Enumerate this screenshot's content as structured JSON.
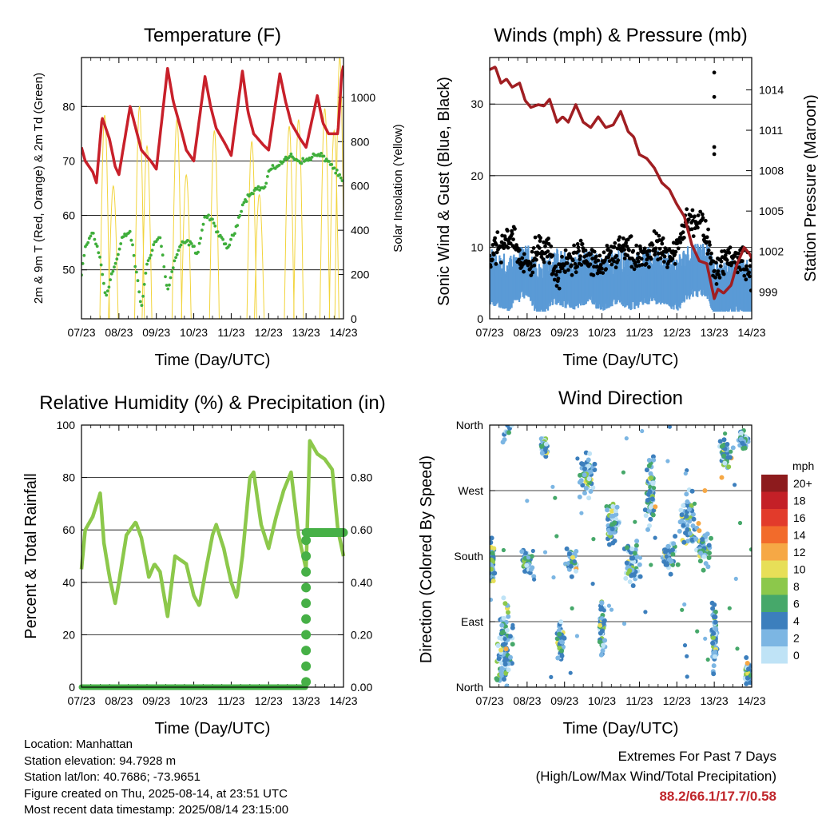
{
  "chart_data": [
    {
      "type": "line",
      "title": "Temperature (F)",
      "xlabel": "Time (Day/UTC)",
      "ylabel": "2m & 9m T (Red, Orange) & 2m Td (Green)",
      "ylabel_right": "Solar Insolation (Yellow)",
      "x_ticks": [
        "07/23",
        "08/23",
        "09/23",
        "10/23",
        "11/23",
        "12/23",
        "13/23",
        "14/23"
      ],
      "y_ticks": [
        50,
        60,
        70,
        80
      ],
      "y_right_ticks": [
        0,
        200,
        400,
        600,
        800,
        1000
      ],
      "ylim": [
        41,
        89
      ],
      "y_right_lim": [
        0,
        1180
      ],
      "grid": "horizontal",
      "series": [
        {
          "name": "2m T",
          "color": "#c8202a",
          "x": [
            0,
            0.1,
            0.3,
            0.4,
            0.55,
            0.75,
            0.9,
            1.0,
            1.3,
            1.45,
            1.6,
            1.85,
            2.0,
            2.3,
            2.45,
            2.65,
            2.8,
            3.0,
            3.3,
            3.45,
            3.6,
            3.85,
            4.0,
            4.3,
            4.45,
            4.6,
            4.85,
            5.0,
            5.3,
            5.45,
            5.6,
            5.85,
            6.0,
            6.3,
            6.45,
            6.6,
            6.85,
            6.95,
            7.0
          ],
          "values": [
            72.5,
            70,
            68,
            66,
            78,
            74,
            69,
            67.5,
            80,
            76,
            72,
            70,
            68.5,
            87,
            81,
            76,
            72,
            70,
            85.5,
            80,
            76,
            73,
            71,
            86.5,
            79,
            75,
            73,
            72,
            86,
            81,
            77,
            74,
            72.5,
            82,
            77,
            75,
            75,
            86,
            87.5
          ]
        },
        {
          "name": "2m Td",
          "color": "#3fae3b",
          "x": [
            0,
            0.1,
            0.3,
            0.5,
            0.65,
            0.8,
            0.95,
            1.1,
            1.3,
            1.5,
            1.6,
            1.75,
            1.95,
            2.1,
            2.3,
            2.5,
            2.7,
            2.9,
            3.1,
            3.3,
            3.5,
            3.7,
            3.9,
            4.1,
            4.3,
            4.5,
            4.7,
            4.9,
            5.0,
            5.2,
            5.4,
            5.6,
            5.8,
            6.0,
            6.2,
            6.4,
            6.6,
            6.8,
            7.0
          ],
          "values": [
            49,
            54,
            57,
            52,
            45,
            49,
            52,
            56,
            57,
            48,
            43,
            51,
            55,
            56,
            46,
            52,
            55,
            55,
            53,
            60,
            59,
            56,
            54,
            57,
            62,
            64,
            65,
            65,
            68,
            69,
            70,
            71,
            70,
            70,
            71,
            71,
            70,
            68,
            66
          ]
        },
        {
          "name": "Solar Insolation",
          "color": "#f2d43c",
          "axis": "right",
          "peaks": [
            {
              "day": 0.62,
              "value": 920
            },
            {
              "day": 0.85,
              "value": 600
            },
            {
              "day": 1.55,
              "value": 960
            },
            {
              "day": 1.75,
              "value": 780
            },
            {
              "day": 2.55,
              "value": 900
            },
            {
              "day": 2.8,
              "value": 650
            },
            {
              "day": 3.55,
              "value": 850
            },
            {
              "day": 4.55,
              "value": 800
            },
            {
              "day": 4.75,
              "value": 560
            },
            {
              "day": 5.55,
              "value": 870
            },
            {
              "day": 5.8,
              "value": 900
            },
            {
              "day": 6.5,
              "value": 950
            },
            {
              "day": 6.75,
              "value": 850
            },
            {
              "day": 6.9,
              "value": 1180
            }
          ]
        }
      ]
    },
    {
      "type": "scatter",
      "title": "Winds (mph) & Pressure (mb)",
      "xlabel": "Time (Day/UTC)",
      "ylabel": "Sonic Wind & Gust (Blue, Black)",
      "ylabel_right": "Station Pressure (Maroon)",
      "x_ticks": [
        "07/23",
        "08/23",
        "09/23",
        "10/23",
        "11/23",
        "12/23",
        "13/23",
        "14/23"
      ],
      "y_ticks": [
        0,
        10,
        20,
        30
      ],
      "y_right_ticks": [
        999,
        1002,
        1005,
        1008,
        1011,
        1014
      ],
      "ylim": [
        0,
        36.5
      ],
      "y_right_lim": [
        997,
        1016.4
      ],
      "grid": "horizontal",
      "series": [
        {
          "name": "Gust",
          "color": "#000000",
          "marker": "dot"
        },
        {
          "name": "Wind",
          "color": "#5a9ad6",
          "marker": "band"
        },
        {
          "name": "Pressure",
          "color": "#a01e22",
          "axis": "right",
          "x": [
            0,
            0.15,
            0.3,
            0.45,
            0.6,
            0.8,
            0.95,
            1.1,
            1.3,
            1.45,
            1.6,
            1.8,
            1.95,
            2.1,
            2.3,
            2.5,
            2.7,
            2.9,
            3.1,
            3.3,
            3.5,
            3.7,
            3.85,
            4.0,
            4.2,
            4.4,
            4.6,
            4.8,
            5.0,
            5.2,
            5.4,
            5.6,
            5.8,
            6.0,
            6.1,
            6.25,
            6.45,
            6.6,
            6.8,
            6.95,
            7.0
          ],
          "values": [
            1015.5,
            1015.7,
            1014.5,
            1014.8,
            1014.2,
            1014.5,
            1013.2,
            1012.7,
            1012.9,
            1012.8,
            1013.3,
            1011.6,
            1012.0,
            1011.6,
            1012.9,
            1011.6,
            1011.2,
            1012.0,
            1011.2,
            1011.4,
            1012.4,
            1010.9,
            1010.5,
            1009.2,
            1008.9,
            1008.2,
            1007.1,
            1006.6,
            1005.5,
            1004.6,
            1002.5,
            1001.3,
            1001.1,
            998.5,
            999.2,
            998.9,
            999.5,
            1001.0,
            1002.3,
            1001.8,
            1001.5
          ]
        },
        {
          "name": "Outliers",
          "color": "#000000",
          "points": [
            [
              6.0,
              34.4
            ],
            [
              6.0,
              31.0
            ],
            [
              6.0,
              24.0
            ],
            [
              6.0,
              23.0
            ]
          ]
        }
      ]
    },
    {
      "type": "line",
      "title": "Relative Humidity (%) & Precipitation (in)",
      "xlabel": "Time (Day/UTC)",
      "ylabel": "Percent & Total Rainfall",
      "x_ticks": [
        "07/23",
        "08/23",
        "09/23",
        "10/23",
        "11/23",
        "12/23",
        "13/23",
        "14/23"
      ],
      "y_ticks": [
        0,
        20,
        40,
        60,
        80,
        100
      ],
      "y_right_ticks": [
        "0.00",
        "0.20",
        "0.40",
        "0.60",
        "0.80"
      ],
      "ylim": [
        0,
        100
      ],
      "y_right_lim": [
        0,
        1.0
      ],
      "grid": "horizontal",
      "series": [
        {
          "name": "Relative Humidity",
          "color": "#8cc84b",
          "x": [
            0,
            0.1,
            0.3,
            0.5,
            0.6,
            0.75,
            0.9,
            1.0,
            1.2,
            1.45,
            1.6,
            1.8,
            1.95,
            2.1,
            2.3,
            2.5,
            2.6,
            2.8,
            3.0,
            3.15,
            3.3,
            3.5,
            3.6,
            3.8,
            4.0,
            4.15,
            4.3,
            4.5,
            4.6,
            4.8,
            5.0,
            5.2,
            5.4,
            5.6,
            5.8,
            6.0,
            6.1,
            6.3,
            6.5,
            6.7,
            6.85,
            7.0
          ],
          "values": [
            45,
            60,
            65,
            74,
            55,
            42,
            32,
            40,
            58,
            63,
            57,
            42,
            47,
            44,
            27,
            50,
            49,
            47,
            35,
            31,
            43,
            58,
            62,
            53,
            40,
            34,
            50,
            80,
            82,
            62,
            53,
            65,
            75,
            82,
            58,
            45,
            94,
            89,
            87,
            83,
            60,
            50
          ]
        },
        {
          "name": "Total Precipitation",
          "color": "#46b046",
          "axis": "right",
          "x": [
            0,
            5.98,
            6.0,
            6.02,
            7.0
          ],
          "values": [
            0.0,
            0.0,
            0.3,
            0.59,
            0.59
          ]
        }
      ]
    },
    {
      "type": "scatter",
      "title": "Wind Direction",
      "xlabel": "Time (Day/UTC)",
      "ylabel": "Direction (Colored By Speed)",
      "x_ticks": [
        "07/23",
        "08/23",
        "09/23",
        "10/23",
        "11/23",
        "12/23",
        "13/23",
        "14/23"
      ],
      "y_ticks": [
        "North",
        "East",
        "South",
        "West",
        "North"
      ],
      "ylim": [
        0,
        360
      ],
      "grid": "horizontal",
      "colorbar": {
        "title": "mph",
        "labels": [
          "20+",
          "18",
          "16",
          "14",
          "12",
          "10",
          "8",
          "6",
          "4",
          "2",
          "0"
        ],
        "colors": [
          "#8d1b1d",
          "#c42027",
          "#e23b2b",
          "#f26b2b",
          "#f6a845",
          "#e7df58",
          "#8cc84b",
          "#46a86a",
          "#3c7fbd",
          "#7cb6e3",
          "#bfe3f6"
        ]
      },
      "clusters": [
        {
          "day": 0.05,
          "dir": 170,
          "spread": 40,
          "width": 0.1
        },
        {
          "day": 0.4,
          "dir": 50,
          "spread": 90,
          "width": 0.3
        },
        {
          "day": 1.0,
          "dir": 170,
          "spread": 25,
          "width": 0.25
        },
        {
          "day": 1.45,
          "dir": 330,
          "spread": 20,
          "width": 0.12
        },
        {
          "day": 1.9,
          "dir": 60,
          "spread": 40,
          "width": 0.12
        },
        {
          "day": 2.2,
          "dir": 175,
          "spread": 30,
          "width": 0.2
        },
        {
          "day": 2.6,
          "dir": 290,
          "spread": 40,
          "width": 0.25
        },
        {
          "day": 3.0,
          "dir": 80,
          "spread": 50,
          "width": 0.1
        },
        {
          "day": 3.3,
          "dir": 230,
          "spread": 40,
          "width": 0.25
        },
        {
          "day": 3.8,
          "dir": 170,
          "spread": 40,
          "width": 0.3
        },
        {
          "day": 4.3,
          "dir": 260,
          "spread": 60,
          "width": 0.2
        },
        {
          "day": 4.8,
          "dir": 180,
          "spread": 30,
          "width": 0.3
        },
        {
          "day": 5.3,
          "dir": 230,
          "spread": 50,
          "width": 0.25
        },
        {
          "day": 5.7,
          "dir": 190,
          "spread": 40,
          "width": 0.3
        },
        {
          "day": 6.0,
          "dir": 70,
          "spread": 60,
          "width": 0.1
        },
        {
          "day": 6.3,
          "dir": 320,
          "spread": 30,
          "width": 0.25
        },
        {
          "day": 6.8,
          "dir": 340,
          "spread": 20,
          "width": 0.2
        },
        {
          "day": 6.9,
          "dir": 20,
          "spread": 25,
          "width": 0.1
        }
      ]
    }
  ],
  "footer": {
    "location": "Location: Manhattan",
    "elevation": "Station elevation: 94.7928 m",
    "latlon": "Station lat/lon: 40.7686; -73.9651",
    "created": "Figure created on Thu, 2025-08-14, at 23:51 UTC",
    "recent": "Most recent data timestamp: 2025/08/14 23:15:00",
    "extremes_title": "Extremes For Past 7 Days",
    "extremes_desc": "(High/Low/Max Wind/Total Precipitation)",
    "extremes_values": "88.2/66.1/17.7/0.58"
  }
}
